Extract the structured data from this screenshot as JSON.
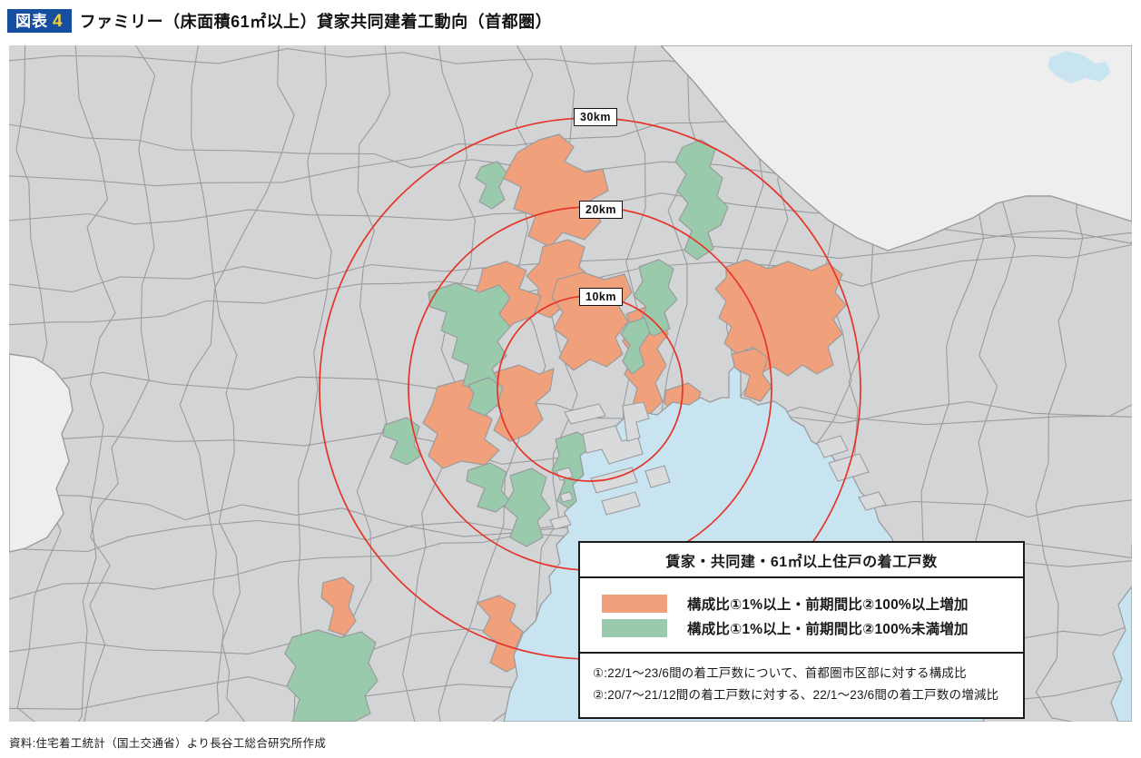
{
  "figure": {
    "badge_label": "図表",
    "badge_number": "4",
    "title": "ファミリー（床面積61㎡以上）貸家共同建着工動向（首都圏）",
    "source": "資料:住宅着工統計（国土交通省）より長谷工総合研究所作成"
  },
  "map": {
    "ring_labels": [
      "30km",
      "20km",
      "10km"
    ],
    "rings_km": [
      30,
      20,
      10
    ]
  },
  "legend": {
    "title": "賃家・共同建・61㎡以上住戸の着工戸数",
    "items": [
      {
        "color": "#f0a17b",
        "label": "構成比①1%以上・前期間比②100%以上増加"
      },
      {
        "color": "#9acaac",
        "label": "構成比①1%以上・前期間比②100%未満増加"
      }
    ],
    "notes": [
      "①:22/1～23/6間の着工戸数について、首都圏市区部に対する構成比",
      "②:20/7～21/12間の着工戸数に対する、22/1～23/6間の着工戸数の増減比"
    ]
  },
  "colors": {
    "increase_100_plus": "#f0a17b",
    "increase_under_100": "#9acaac",
    "land": "#d3d4d6",
    "land_outside": "#eeeeef",
    "island": "#d9dadc",
    "boundary": "#9a9b9d",
    "water": "#c9e4f1",
    "ring": "#e6342a",
    "badge_bg": "#164f9f",
    "badge_number": "#f2cf3a",
    "text": "#111111"
  }
}
